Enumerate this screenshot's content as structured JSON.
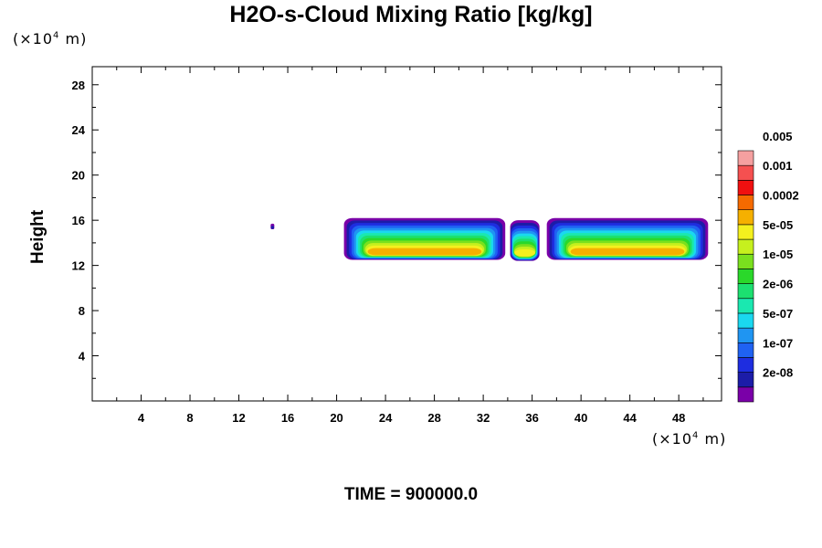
{
  "chart_data": {
    "type": "heatmap",
    "title": "H2O-s-Cloud Mixing Ratio [kg/kg]",
    "ylabel": "Height",
    "x_unit": "(×10",
    "x_unit_exp": "4",
    "x_unit_suffix": " m)",
    "y_unit": "(×10",
    "y_unit_exp": "4",
    "y_unit_suffix": " m)",
    "x_ticks": [
      "4",
      "8",
      "12",
      "16",
      "20",
      "24",
      "28",
      "32",
      "36",
      "40",
      "44",
      "48"
    ],
    "y_ticks": [
      "4",
      "8",
      "12",
      "16",
      "20",
      "24",
      "28"
    ],
    "xlim": [
      0,
      51.5
    ],
    "ylim": [
      0,
      29.6
    ],
    "footer": "TIME = 900000.0",
    "colorbar": {
      "colors": [
        "#7a00a8",
        "#1c1ca8",
        "#1e2de0",
        "#1f62f2",
        "#1f95f2",
        "#1ad8f0",
        "#1ae8b0",
        "#1ce070",
        "#2ad82a",
        "#7ae01e",
        "#c6f01e",
        "#f4f01e",
        "#f5b000",
        "#f56a00",
        "#f01010",
        "#f55050",
        "#f5a0a0"
      ],
      "labels": [
        "2e-08",
        "1e-07",
        "5e-07",
        "2e-06",
        "1e-05",
        "5e-05",
        "0.0002",
        "0.001",
        "0.005"
      ]
    },
    "cloud_regions": [
      {
        "name": "main-cloud-left",
        "x": [
          20.6,
          33.8
        ],
        "y": [
          12.5,
          16.2
        ],
        "peak_level": 12
      },
      {
        "name": "middle-column",
        "x": [
          34.2,
          36.6
        ],
        "y": [
          12.4,
          16.0
        ],
        "peak_level": 11
      },
      {
        "name": "main-cloud-right",
        "x": [
          37.2,
          50.4
        ],
        "y": [
          12.5,
          16.2
        ],
        "peak_level": 12
      },
      {
        "name": "isolated-speck",
        "x": [
          14.6,
          14.9
        ],
        "y": [
          15.2,
          15.7
        ],
        "peak_level": 1
      }
    ]
  }
}
